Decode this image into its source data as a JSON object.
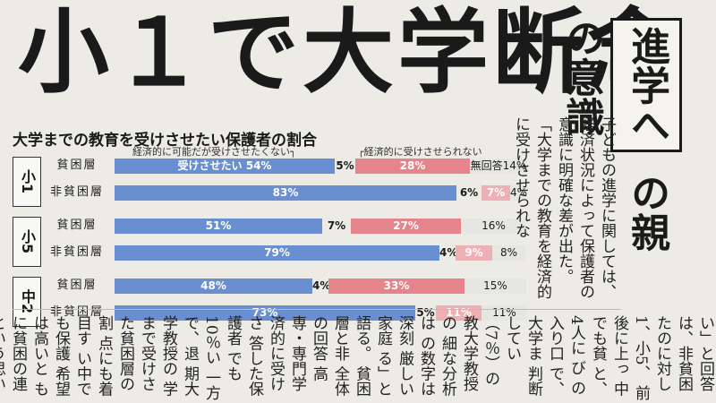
{
  "headline": "小１で大学断念",
  "subheadline": {
    "boxed": "進学へ",
    "plain": "の親の意識"
  },
  "chart_data": {
    "type": "bar",
    "title": "大学までの教育を受けさせたい保護者の割合",
    "legend": {
      "left": "経済的に可能だが受けさせたくない",
      "right": "経済的に受けさせられない"
    },
    "series_labels": {
      "want": "受けさせたい",
      "no_answer": "無回答"
    },
    "groups": [
      {
        "name": "小1",
        "rows": [
          {
            "label": "貧困層",
            "want": 54,
            "not_want": 5,
            "cannot": 28,
            "no_answer": 14,
            "want_text": "受けさせたい 54%",
            "not_want_text": "5%",
            "cannot_text": "28%",
            "na_text": "無回答14%"
          },
          {
            "label": "非貧困層",
            "want": 83,
            "not_want": 6,
            "cannot": 7,
            "no_answer": 4,
            "want_text": "83%",
            "not_want_text": "6%",
            "cannot_text": "7%",
            "na_text": "4%"
          }
        ]
      },
      {
        "name": "小5",
        "rows": [
          {
            "label": "貧困層",
            "want": 51,
            "not_want": 7,
            "cannot": 27,
            "no_answer": 16,
            "want_text": "51%",
            "not_want_text": "7%",
            "cannot_text": "27%",
            "na_text": "16%"
          },
          {
            "label": "非貧困層",
            "want": 79,
            "not_want": 4,
            "cannot": 9,
            "no_answer": 8,
            "want_text": "79%",
            "not_want_text": "4%",
            "cannot_text": "9%",
            "na_text": "8%"
          }
        ]
      },
      {
        "name": "中2",
        "rows": [
          {
            "label": "貧困層",
            "want": 48,
            "not_want": 4,
            "cannot": 33,
            "no_answer": 15,
            "want_text": "48%",
            "not_want_text": "4%",
            "cannot_text": "33%",
            "na_text": "15%"
          },
          {
            "label": "非貧困層",
            "want": 73,
            "not_want": 5,
            "cannot": 11,
            "no_answer": 11,
            "want_text": "73%",
            "not_want_text": "5%",
            "cannot_text": "11%",
            "na_text": "11%"
          }
        ]
      }
    ],
    "colors": {
      "want": "#6a8fd1",
      "cannot": "#e5848b",
      "cannot_light": "#eeb0b4",
      "no_answer": "#e6e6e2"
    }
  },
  "article_text": "子どもの進学に関しては、経済状況によって保護者の意識に明確な差が出た。「大学までの教育を経済的に受けさせられな",
  "lower_text": "い」と回答 は、非貧困 たのに対し 1、小5、 前後に上っ 中でも貧 と、4人に び の入り口 で、大学ま 判断してい （7％）の 教大学教授の 細な分析は の数字は深刻 厳しい家庭 る」と語る。 貧困層と非 全体の回答 高専・専門学 済的に受けさ 答した保護者 でも10％い 一方で、退 期大学教授の 学まで受けさ た貧困層の割 点にも着目す い中でも保護 希望は高いと もに貧困の連 という思いが"
}
